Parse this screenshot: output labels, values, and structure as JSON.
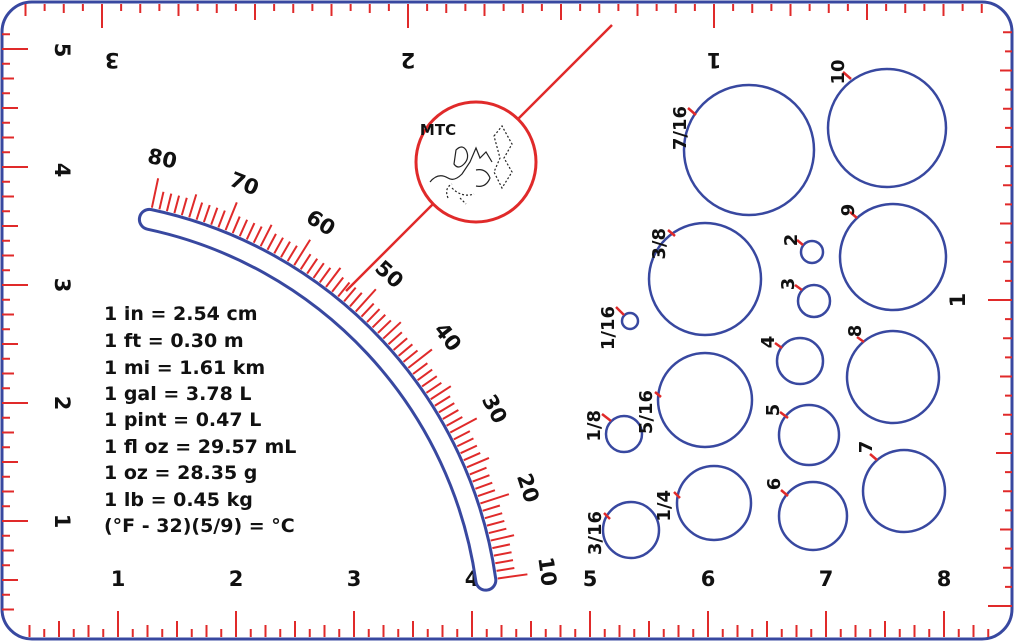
{
  "card": {
    "border_color": "#3848a0",
    "accent_color": "#e02a2a",
    "text_color": "#111111"
  },
  "logo": {
    "label": "MTC",
    "icon": "cat-ascii-art-icon"
  },
  "bottom_ruler": {
    "labels": [
      "1",
      "2",
      "3",
      "4",
      "5",
      "6",
      "7",
      "8"
    ]
  },
  "left_ruler": {
    "labels": [
      "1",
      "2",
      "3",
      "4",
      "5"
    ]
  },
  "top_ruler": {
    "labels": [
      "1",
      "2",
      "3"
    ]
  },
  "right_ruler": {
    "labels": [
      "1"
    ]
  },
  "angle_gauge": {
    "labels": [
      "80",
      "70",
      "60",
      "50",
      "40",
      "30",
      "20",
      "10"
    ]
  },
  "conversions": [
    "1 in = 2.54 cm",
    "1 ft = 0.30 m",
    "1 mi = 1.61 km",
    "1 gal = 3.78 L",
    "1 pint = 0.47 L",
    "1 fl oz = 29.57 mL",
    "1 oz = 28.35 g",
    "1 lb = 0.45 kg",
    "(°F - 32)(5/9) = °C"
  ],
  "holes_fraction": [
    "1/16",
    "1/8",
    "3/16",
    "1/4",
    "5/16",
    "3/8",
    "7/16"
  ],
  "holes_metric": [
    "2",
    "3",
    "4",
    "5",
    "6",
    "7",
    "8",
    "9",
    "10"
  ]
}
